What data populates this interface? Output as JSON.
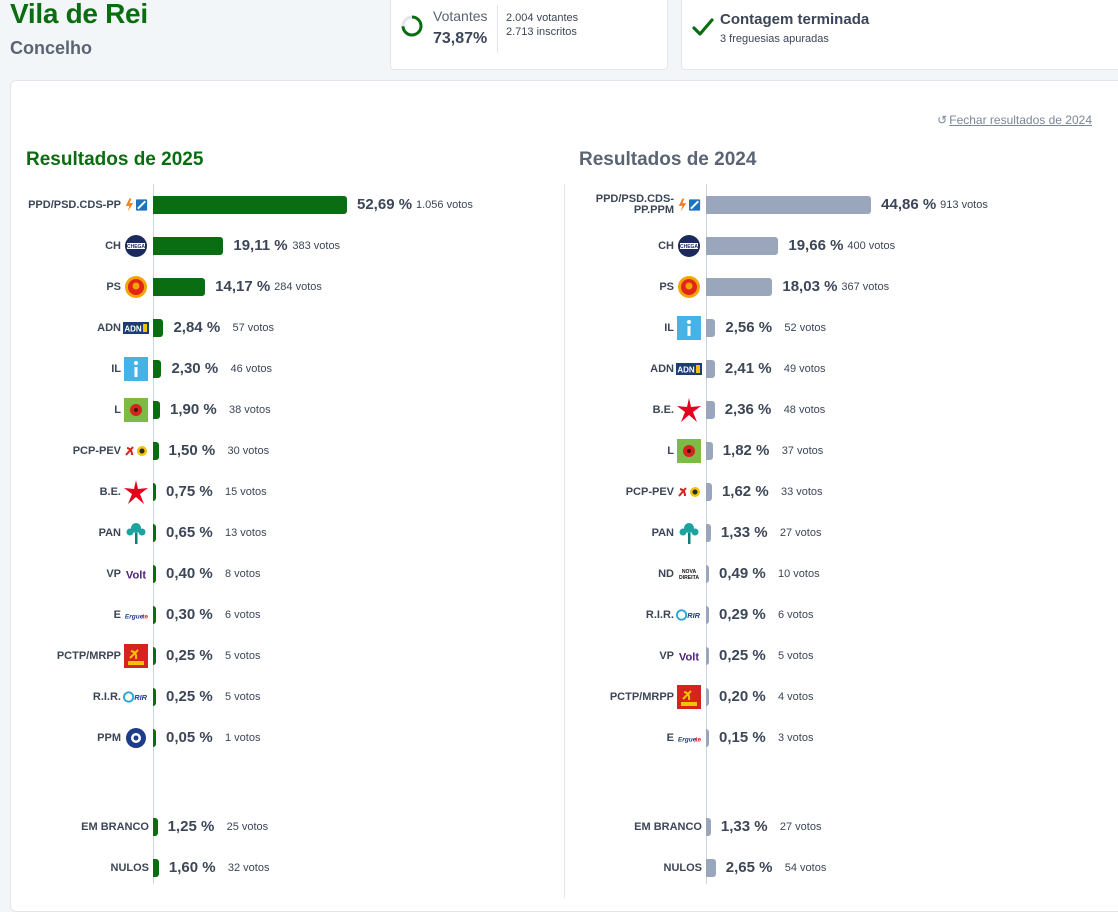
{
  "header": {
    "title": "Vila de Rei",
    "subtitle": "Concelho"
  },
  "votantes": {
    "label": "Votantes",
    "percent": "73,87%",
    "percent_value": 73.87,
    "voters": "2.004 votantes",
    "registered": "2.713 inscritos"
  },
  "contagem": {
    "title": "Contagem terminada",
    "subtitle": "3 freguesias apuradas"
  },
  "close_link": "Fechar resultados de 2024",
  "colors": {
    "bar2025": "#0a6d12",
    "bar2024": "#9aa6bb",
    "accent": "#0a6d12"
  },
  "chart_data": [
    {
      "type": "bar",
      "title": "Resultados de 2025",
      "parties": [
        {
          "name": "PPD/PSD.CDS-PP",
          "logo": "ad-coalition-logo",
          "value": 52.69,
          "pct": "52,69 %",
          "votes": "1.056 votos"
        },
        {
          "name": "CH",
          "logo": "chega-logo",
          "value": 19.11,
          "pct": "19,11 %",
          "votes": "383 votos"
        },
        {
          "name": "PS",
          "logo": "ps-logo",
          "value": 14.17,
          "pct": "14,17 %",
          "votes": "284 votos"
        },
        {
          "name": "ADN",
          "logo": "adn-logo",
          "value": 2.84,
          "pct": "2,84 %",
          "votes": "57 votos"
        },
        {
          "name": "IL",
          "logo": "il-logo",
          "value": 2.3,
          "pct": "2,30 %",
          "votes": "46 votos"
        },
        {
          "name": "L",
          "logo": "livre-logo",
          "value": 1.9,
          "pct": "1,90 %",
          "votes": "38 votos"
        },
        {
          "name": "PCP-PEV",
          "logo": "cdu-logo",
          "value": 1.5,
          "pct": "1,50 %",
          "votes": "30 votos"
        },
        {
          "name": "B.E.",
          "logo": "be-logo",
          "value": 0.75,
          "pct": "0,75 %",
          "votes": "15 votos"
        },
        {
          "name": "PAN",
          "logo": "pan-logo",
          "value": 0.65,
          "pct": "0,65 %",
          "votes": "13 votos"
        },
        {
          "name": "VP",
          "logo": "volt-logo",
          "value": 0.4,
          "pct": "0,40 %",
          "votes": "8 votos"
        },
        {
          "name": "E",
          "logo": "ergue-te-logo",
          "value": 0.3,
          "pct": "0,30 %",
          "votes": "6 votos"
        },
        {
          "name": "PCTP/MRPP",
          "logo": "pctp-logo",
          "value": 0.25,
          "pct": "0,25 %",
          "votes": "5 votos"
        },
        {
          "name": "R.I.R.",
          "logo": "rir-logo",
          "value": 0.25,
          "pct": "0,25 %",
          "votes": "5 votos"
        },
        {
          "name": "PPM",
          "logo": "ppm-logo",
          "value": 0.05,
          "pct": "0,05 %",
          "votes": "1 votos"
        }
      ],
      "extra": [
        {
          "name": "EM BRANCO",
          "value": 1.25,
          "pct": "1,25 %",
          "votes": "25 votos"
        },
        {
          "name": "NULOS",
          "value": 1.6,
          "pct": "1,60 %",
          "votes": "32 votos"
        }
      ]
    },
    {
      "type": "bar",
      "title": "Resultados de 2024",
      "parties": [
        {
          "name": "PPD/PSD.CDS-PP.PPM",
          "logo": "ad-coalition-logo",
          "value": 44.86,
          "pct": "44,86 %",
          "votes": "913 votos"
        },
        {
          "name": "CH",
          "logo": "chega-logo",
          "value": 19.66,
          "pct": "19,66 %",
          "votes": "400 votos"
        },
        {
          "name": "PS",
          "logo": "ps-logo",
          "value": 18.03,
          "pct": "18,03 %",
          "votes": "367 votos"
        },
        {
          "name": "IL",
          "logo": "il-logo",
          "value": 2.56,
          "pct": "2,56 %",
          "votes": "52 votos"
        },
        {
          "name": "ADN",
          "logo": "adn-logo",
          "value": 2.41,
          "pct": "2,41 %",
          "votes": "49 votos"
        },
        {
          "name": "B.E.",
          "logo": "be-logo",
          "value": 2.36,
          "pct": "2,36 %",
          "votes": "48 votos"
        },
        {
          "name": "L",
          "logo": "livre-logo",
          "value": 1.82,
          "pct": "1,82 %",
          "votes": "37 votos"
        },
        {
          "name": "PCP-PEV",
          "logo": "cdu-logo",
          "value": 1.62,
          "pct": "1,62 %",
          "votes": "33 votos"
        },
        {
          "name": "PAN",
          "logo": "pan-logo",
          "value": 1.33,
          "pct": "1,33 %",
          "votes": "27 votos"
        },
        {
          "name": "ND",
          "logo": "nova-direita-logo",
          "value": 0.49,
          "pct": "0,49 %",
          "votes": "10 votos"
        },
        {
          "name": "R.I.R.",
          "logo": "rir-logo",
          "value": 0.29,
          "pct": "0,29 %",
          "votes": "6 votos"
        },
        {
          "name": "VP",
          "logo": "volt-logo",
          "value": 0.25,
          "pct": "0,25 %",
          "votes": "5 votos"
        },
        {
          "name": "PCTP/MRPP",
          "logo": "pctp-logo",
          "value": 0.2,
          "pct": "0,20 %",
          "votes": "4 votos"
        },
        {
          "name": "E",
          "logo": "ergue-te-logo",
          "value": 0.15,
          "pct": "0,15 %",
          "votes": "3 votos"
        }
      ],
      "extra": [
        {
          "name": "EM BRANCO",
          "value": 1.33,
          "pct": "1,33 %",
          "votes": "27 votos"
        },
        {
          "name": "NULOS",
          "value": 2.65,
          "pct": "2,65 %",
          "votes": "54 votos"
        }
      ]
    }
  ]
}
